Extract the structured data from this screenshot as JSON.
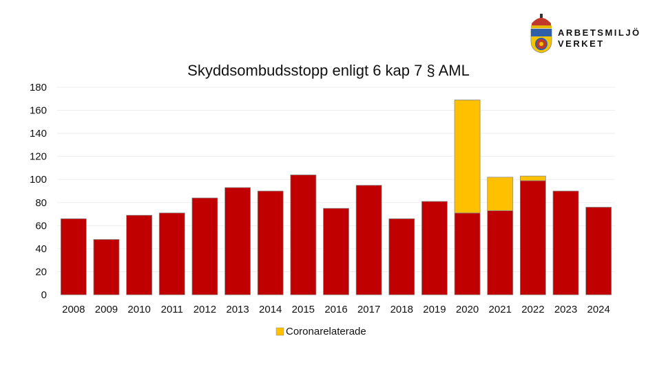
{
  "logo": {
    "line1": "ARBETSMILJÖ",
    "line2": "VERKET"
  },
  "colors": {
    "base": "#C00000",
    "corona": "#FFC000",
    "grid": "#EDEDED",
    "outline": "#8C8C8C"
  },
  "chart_data": {
    "type": "bar",
    "stacked": true,
    "title": "Skyddsombudsstopp enligt 6 kap 7 § AML",
    "xlabel": "",
    "ylabel": "",
    "ylim": [
      0,
      180
    ],
    "yticks": [
      0,
      20,
      40,
      60,
      80,
      100,
      120,
      140,
      160,
      180
    ],
    "grid": true,
    "legend": "bottom",
    "categories": [
      "2008",
      "2009",
      "2010",
      "2011",
      "2012",
      "2013",
      "2014",
      "2015",
      "2016",
      "2017",
      "2018",
      "2019",
      "2020",
      "2021",
      "2022",
      "2023",
      "2024"
    ],
    "series": [
      {
        "values": [
          66,
          48,
          69,
          71,
          84,
          93,
          90,
          104,
          75,
          95,
          66,
          81,
          71,
          73,
          99,
          90,
          76
        ],
        "color": "#C00000"
      },
      {
        "name": "Coronarelaterade",
        "values": [
          0,
          0,
          0,
          0,
          0,
          0,
          0,
          0,
          0,
          0,
          0,
          0,
          98,
          29,
          4,
          0,
          0
        ],
        "color": "#FFC000"
      }
    ]
  }
}
